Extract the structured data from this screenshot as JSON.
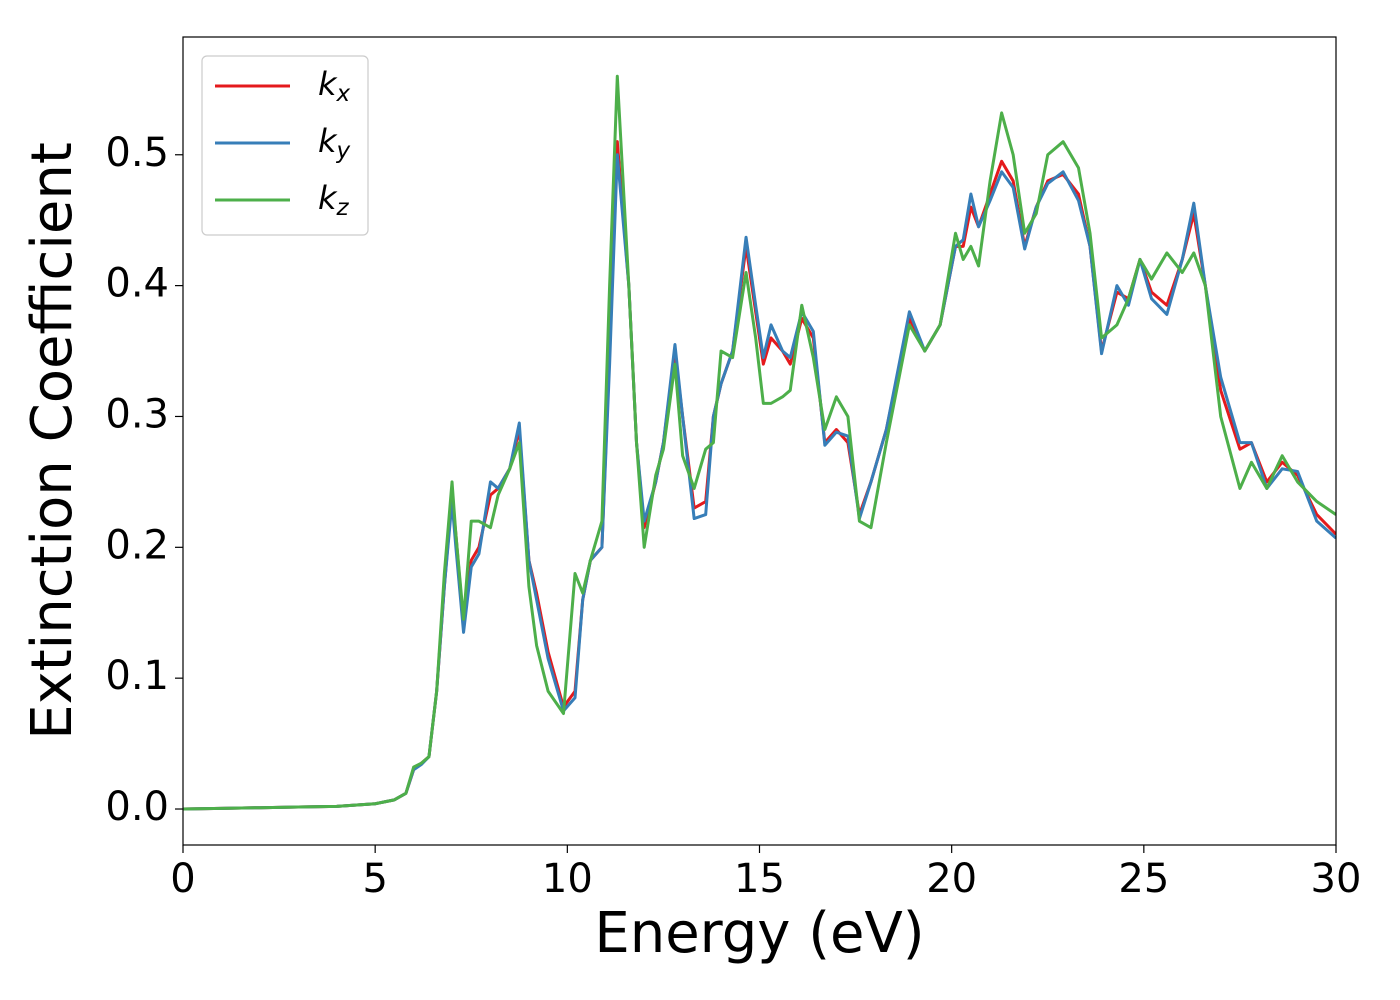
{
  "chart_data": {
    "type": "line",
    "xlabel": "Energy (eV)",
    "ylabel": "Extinction Coefficient",
    "xlim": [
      0,
      30
    ],
    "ylim": [
      -0.0275,
      0.59
    ],
    "xticks": [
      0,
      5,
      10,
      15,
      20,
      25,
      30
    ],
    "yticks": [
      {
        "value": 0,
        "label": "0.0"
      },
      0.1,
      0.2,
      0.3,
      0.4,
      0.5
    ],
    "legend": "upper left",
    "x": [
      0,
      1,
      2,
      3,
      4,
      5,
      5.5,
      5.8,
      6.0,
      6.2,
      6.4,
      6.6,
      6.8,
      7.0,
      7.1,
      7.3,
      7.5,
      7.7,
      8.0,
      8.2,
      8.5,
      8.75,
      9.0,
      9.2,
      9.5,
      9.9,
      10.2,
      10.4,
      10.6,
      10.9,
      11.1,
      11.3,
      11.6,
      11.8,
      12.0,
      12.3,
      12.5,
      12.8,
      13.0,
      13.3,
      13.6,
      13.8,
      14.0,
      14.3,
      14.65,
      14.9,
      15.1,
      15.3,
      15.6,
      15.8,
      16.1,
      16.4,
      16.7,
      17.0,
      17.3,
      17.6,
      17.9,
      18.3,
      18.9,
      19.3,
      19.7,
      20.1,
      20.3,
      20.5,
      20.7,
      21.0,
      21.3,
      21.6,
      21.9,
      22.2,
      22.5,
      22.9,
      23.3,
      23.6,
      23.9,
      24.3,
      24.6,
      24.9,
      25.2,
      25.6,
      26.0,
      26.3,
      26.6,
      27.0,
      27.5,
      27.8,
      28.2,
      28.6,
      29.0,
      29.5,
      30
    ],
    "series": [
      {
        "name": "kx",
        "color": "#e41a1c",
        "values": [
          0,
          0.0005,
          0.001,
          0.0015,
          0.002,
          0.004,
          0.007,
          0.012,
          0.03,
          0.035,
          0.04,
          0.09,
          0.17,
          0.24,
          0.21,
          0.14,
          0.19,
          0.2,
          0.24,
          0.245,
          0.26,
          0.29,
          0.19,
          0.165,
          0.12,
          0.078,
          0.09,
          0.16,
          0.19,
          0.2,
          0.35,
          0.51,
          0.4,
          0.28,
          0.215,
          0.25,
          0.28,
          0.35,
          0.3,
          0.23,
          0.235,
          0.3,
          0.325,
          0.35,
          0.43,
          0.38,
          0.34,
          0.36,
          0.35,
          0.34,
          0.375,
          0.36,
          0.28,
          0.29,
          0.28,
          0.225,
          0.25,
          0.29,
          0.375,
          0.35,
          0.37,
          0.43,
          0.43,
          0.46,
          0.445,
          0.47,
          0.495,
          0.48,
          0.43,
          0.46,
          0.48,
          0.485,
          0.47,
          0.43,
          0.35,
          0.395,
          0.39,
          0.42,
          0.395,
          0.385,
          0.42,
          0.455,
          0.4,
          0.32,
          0.275,
          0.28,
          0.25,
          0.265,
          0.255,
          0.225,
          0.21
        ]
      },
      {
        "name": "ky",
        "color": "#377eb8",
        "values": [
          0,
          0.0005,
          0.001,
          0.0015,
          0.002,
          0.004,
          0.007,
          0.012,
          0.03,
          0.034,
          0.04,
          0.09,
          0.17,
          0.235,
          0.2,
          0.135,
          0.185,
          0.195,
          0.25,
          0.245,
          0.26,
          0.295,
          0.19,
          0.16,
          0.115,
          0.075,
          0.085,
          0.16,
          0.19,
          0.2,
          0.34,
          0.5,
          0.4,
          0.28,
          0.22,
          0.25,
          0.28,
          0.355,
          0.3,
          0.222,
          0.225,
          0.3,
          0.325,
          0.35,
          0.437,
          0.385,
          0.345,
          0.37,
          0.35,
          0.345,
          0.38,
          0.365,
          0.278,
          0.288,
          0.285,
          0.222,
          0.25,
          0.29,
          0.38,
          0.35,
          0.37,
          0.43,
          0.435,
          0.47,
          0.445,
          0.465,
          0.487,
          0.475,
          0.428,
          0.46,
          0.478,
          0.487,
          0.465,
          0.43,
          0.348,
          0.4,
          0.385,
          0.42,
          0.39,
          0.378,
          0.42,
          0.463,
          0.4,
          0.33,
          0.28,
          0.28,
          0.245,
          0.26,
          0.258,
          0.22,
          0.207
        ]
      },
      {
        "name": "kz",
        "color": "#4daf4a",
        "values": [
          0,
          0.0005,
          0.001,
          0.0015,
          0.002,
          0.004,
          0.007,
          0.012,
          0.032,
          0.035,
          0.04,
          0.09,
          0.18,
          0.25,
          0.21,
          0.145,
          0.22,
          0.22,
          0.215,
          0.24,
          0.26,
          0.28,
          0.17,
          0.125,
          0.09,
          0.073,
          0.18,
          0.165,
          0.19,
          0.22,
          0.4,
          0.56,
          0.4,
          0.28,
          0.2,
          0.255,
          0.275,
          0.34,
          0.27,
          0.245,
          0.275,
          0.28,
          0.35,
          0.345,
          0.41,
          0.36,
          0.31,
          0.31,
          0.315,
          0.32,
          0.385,
          0.345,
          0.29,
          0.315,
          0.3,
          0.22,
          0.215,
          0.28,
          0.37,
          0.35,
          0.37,
          0.44,
          0.42,
          0.43,
          0.415,
          0.48,
          0.532,
          0.5,
          0.44,
          0.455,
          0.5,
          0.51,
          0.49,
          0.44,
          0.36,
          0.37,
          0.39,
          0.42,
          0.405,
          0.425,
          0.41,
          0.425,
          0.4,
          0.3,
          0.245,
          0.265,
          0.245,
          0.27,
          0.25,
          0.235,
          0.225
        ]
      }
    ]
  }
}
